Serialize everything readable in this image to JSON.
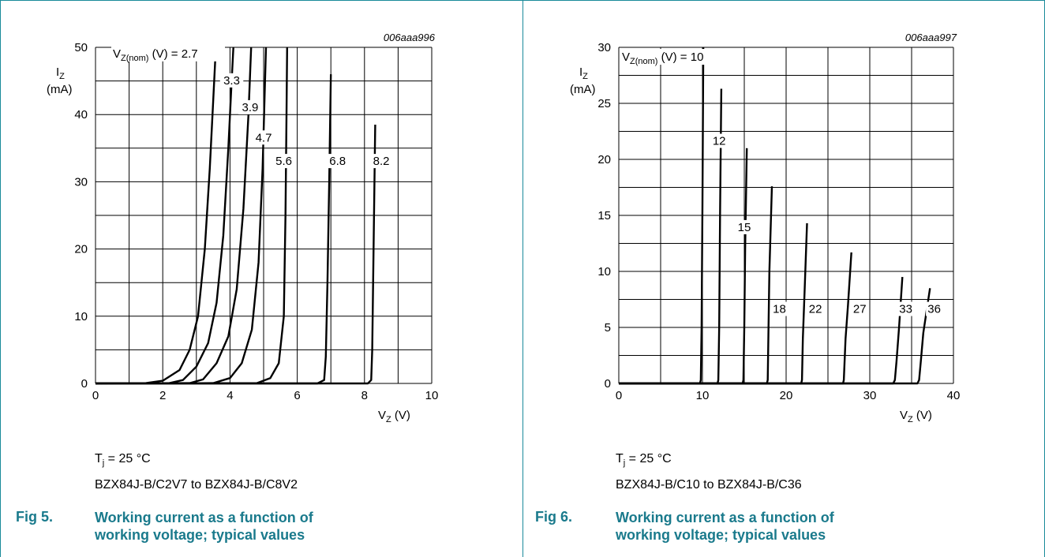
{
  "colors": {
    "frame": "#1a8a9a",
    "caption": "#1a7a8c",
    "grid": "#000000",
    "curve": "#000000"
  },
  "chart_data": [
    {
      "type": "line",
      "code": "006aaa996",
      "ylabel": "I_Z",
      "ylabel_main": "I",
      "ylabel_sub": "Z",
      "yunit": "(mA)",
      "xlabel_main": "V",
      "xlabel_sub": "Z",
      "xunit": " (V)",
      "xlim": [
        0,
        10
      ],
      "ylim": [
        0,
        50
      ],
      "xticks": [
        0,
        2,
        4,
        6,
        8,
        10
      ],
      "yticks": [
        0,
        10,
        20,
        30,
        40,
        50
      ],
      "x_gridlines": [
        0,
        1,
        2,
        3,
        4,
        5,
        6,
        7,
        8,
        9,
        10
      ],
      "y_gridlines": [
        0,
        5,
        10,
        15,
        20,
        25,
        30,
        35,
        40,
        45,
        50
      ],
      "annotation_prefix_main": "V",
      "annotation_prefix_sub": "Z(nom)",
      "annotation_prefix_rest": " (V) = ",
      "series": [
        {
          "name": "2.7",
          "points": [
            [
              0,
              0
            ],
            [
              1.5,
              0.05
            ],
            [
              2,
              0.4
            ],
            [
              2.5,
              2
            ],
            [
              2.8,
              5
            ],
            [
              3.05,
              10
            ],
            [
              3.25,
              20
            ],
            [
              3.4,
              32
            ],
            [
              3.5,
              42
            ],
            [
              3.58,
              50
            ]
          ],
          "label_at": [
            3.35,
            48.5
          ]
        },
        {
          "name": "3.3",
          "points": [
            [
              0,
              0
            ],
            [
              2.2,
              0.05
            ],
            [
              2.6,
              0.5
            ],
            [
              3,
              2.5
            ],
            [
              3.35,
              6
            ],
            [
              3.6,
              12
            ],
            [
              3.8,
              22
            ],
            [
              3.95,
              35
            ],
            [
              4.05,
              45
            ],
            [
              4.1,
              50
            ]
          ],
          "label_at": [
            4.05,
            44.5
          ]
        },
        {
          "name": "3.9",
          "points": [
            [
              0,
              0
            ],
            [
              2.8,
              0.05
            ],
            [
              3.2,
              0.6
            ],
            [
              3.6,
              3
            ],
            [
              3.95,
              7
            ],
            [
              4.2,
              14
            ],
            [
              4.4,
              26
            ],
            [
              4.55,
              40
            ],
            [
              4.63,
              50
            ]
          ],
          "label_at": [
            4.6,
            40.5
          ]
        },
        {
          "name": "4.7",
          "points": [
            [
              0,
              0
            ],
            [
              3.5,
              0.05
            ],
            [
              4,
              0.8
            ],
            [
              4.35,
              3
            ],
            [
              4.65,
              8
            ],
            [
              4.85,
              18
            ],
            [
              4.97,
              32
            ],
            [
              5.03,
              43
            ],
            [
              5.07,
              50
            ]
          ],
          "label_at": [
            5.0,
            36
          ]
        },
        {
          "name": "5.6",
          "points": [
            [
              0,
              0
            ],
            [
              4.8,
              0.05
            ],
            [
              5.2,
              0.8
            ],
            [
              5.45,
              3
            ],
            [
              5.6,
              10
            ],
            [
              5.65,
              25
            ],
            [
              5.68,
              40
            ],
            [
              5.7,
              50
            ]
          ],
          "label_at": [
            5.6,
            32.5
          ]
        },
        {
          "name": "6.8",
          "points": [
            [
              0,
              0
            ],
            [
              6.6,
              0
            ],
            [
              6.8,
              0.5
            ],
            [
              6.85,
              4
            ],
            [
              6.9,
              15
            ],
            [
              6.95,
              30
            ],
            [
              7.0,
              46
            ]
          ],
          "label_at": [
            7.2,
            32.5
          ]
        },
        {
          "name": "8.2",
          "points": [
            [
              0,
              0
            ],
            [
              8.1,
              0
            ],
            [
              8.2,
              0.5
            ],
            [
              8.23,
              5
            ],
            [
              8.27,
              20
            ],
            [
              8.32,
              38.5
            ]
          ],
          "label_at": [
            8.5,
            32.5
          ]
        }
      ],
      "conditions_main": "T",
      "conditions_sub": "j",
      "conditions_rest": " = 25 °C",
      "subtitle": "BZX84J-B/C2V7 to BZX84J-B/C8V2",
      "fig_label": "Fig 5.",
      "caption": "Working current as a function of working voltage; typical values"
    },
    {
      "type": "line",
      "code": "006aaa997",
      "ylabel": "I_Z",
      "ylabel_main": "I",
      "ylabel_sub": "Z",
      "yunit": "(mA)",
      "xlabel_main": "V",
      "xlabel_sub": "Z",
      "xunit": " (V)",
      "xlim": [
        0,
        40
      ],
      "ylim": [
        0,
        30
      ],
      "xticks": [
        0,
        10,
        20,
        30,
        40
      ],
      "yticks": [
        0,
        5,
        10,
        15,
        20,
        25,
        30
      ],
      "x_gridlines": [
        0,
        5,
        10,
        15,
        20,
        25,
        30,
        35,
        40
      ],
      "y_gridlines": [
        0,
        2.5,
        5,
        7.5,
        10,
        12.5,
        15,
        17.5,
        20,
        22.5,
        25,
        27.5,
        30
      ],
      "annotation_prefix_main": "V",
      "annotation_prefix_sub": "Z(nom)",
      "annotation_prefix_rest": " (V) = ",
      "series": [
        {
          "name": "10",
          "points": [
            [
              0,
              0
            ],
            [
              9.7,
              0
            ],
            [
              9.8,
              0.3
            ],
            [
              9.9,
              5
            ],
            [
              10.0,
              16
            ],
            [
              10.1,
              30
            ]
          ],
          "label_at": [
            11.5,
            28.8
          ]
        },
        {
          "name": "12",
          "points": [
            [
              0,
              0
            ],
            [
              11.8,
              0
            ],
            [
              11.9,
              0.3
            ],
            [
              12.0,
              5
            ],
            [
              12.1,
              15
            ],
            [
              12.25,
              26.3
            ]
          ],
          "label_at": [
            12.0,
            21.3
          ]
        },
        {
          "name": "15",
          "points": [
            [
              0,
              0
            ],
            [
              14.8,
              0
            ],
            [
              14.9,
              0.3
            ],
            [
              15.0,
              5
            ],
            [
              15.1,
              12
            ],
            [
              15.3,
              21
            ]
          ],
          "label_at": [
            15.0,
            13.6
          ]
        },
        {
          "name": "18",
          "points": [
            [
              0,
              0
            ],
            [
              17.7,
              0
            ],
            [
              17.8,
              0.3
            ],
            [
              17.9,
              5
            ],
            [
              18.0,
              10
            ],
            [
              18.3,
              17.6
            ]
          ],
          "label_at": [
            19.2,
            6.3
          ]
        },
        {
          "name": "22",
          "points": [
            [
              0,
              0
            ],
            [
              21.8,
              0
            ],
            [
              21.9,
              0.3
            ],
            [
              22.0,
              4
            ],
            [
              22.2,
              8
            ],
            [
              22.5,
              14.3
            ]
          ],
          "label_at": [
            23.5,
            6.3
          ]
        },
        {
          "name": "27",
          "points": [
            [
              0,
              0
            ],
            [
              26.8,
              0
            ],
            [
              26.9,
              0.3
            ],
            [
              27.1,
              4
            ],
            [
              27.4,
              7
            ],
            [
              27.8,
              11.7
            ]
          ],
          "label_at": [
            28.8,
            6.3
          ]
        },
        {
          "name": "33",
          "points": [
            [
              0,
              0
            ],
            [
              32.8,
              0
            ],
            [
              33.0,
              0.3
            ],
            [
              33.2,
              2
            ],
            [
              33.5,
              5
            ],
            [
              33.9,
              9.5
            ]
          ],
          "label_at": [
            34.3,
            6.3
          ]
        },
        {
          "name": "36",
          "points": [
            [
              0,
              0
            ],
            [
              35.7,
              0
            ],
            [
              35.9,
              0.3
            ],
            [
              36.1,
              2
            ],
            [
              36.4,
              4.5
            ],
            [
              37.2,
              8.5
            ]
          ],
          "label_at": [
            37.7,
            6.3
          ]
        }
      ],
      "conditions_main": "T",
      "conditions_sub": "j",
      "conditions_rest": " = 25 °C",
      "subtitle": "BZX84J-B/C10 to BZX84J-B/C36",
      "fig_label": "Fig 6.",
      "caption": "Working current as a function of working voltage; typical values"
    }
  ]
}
